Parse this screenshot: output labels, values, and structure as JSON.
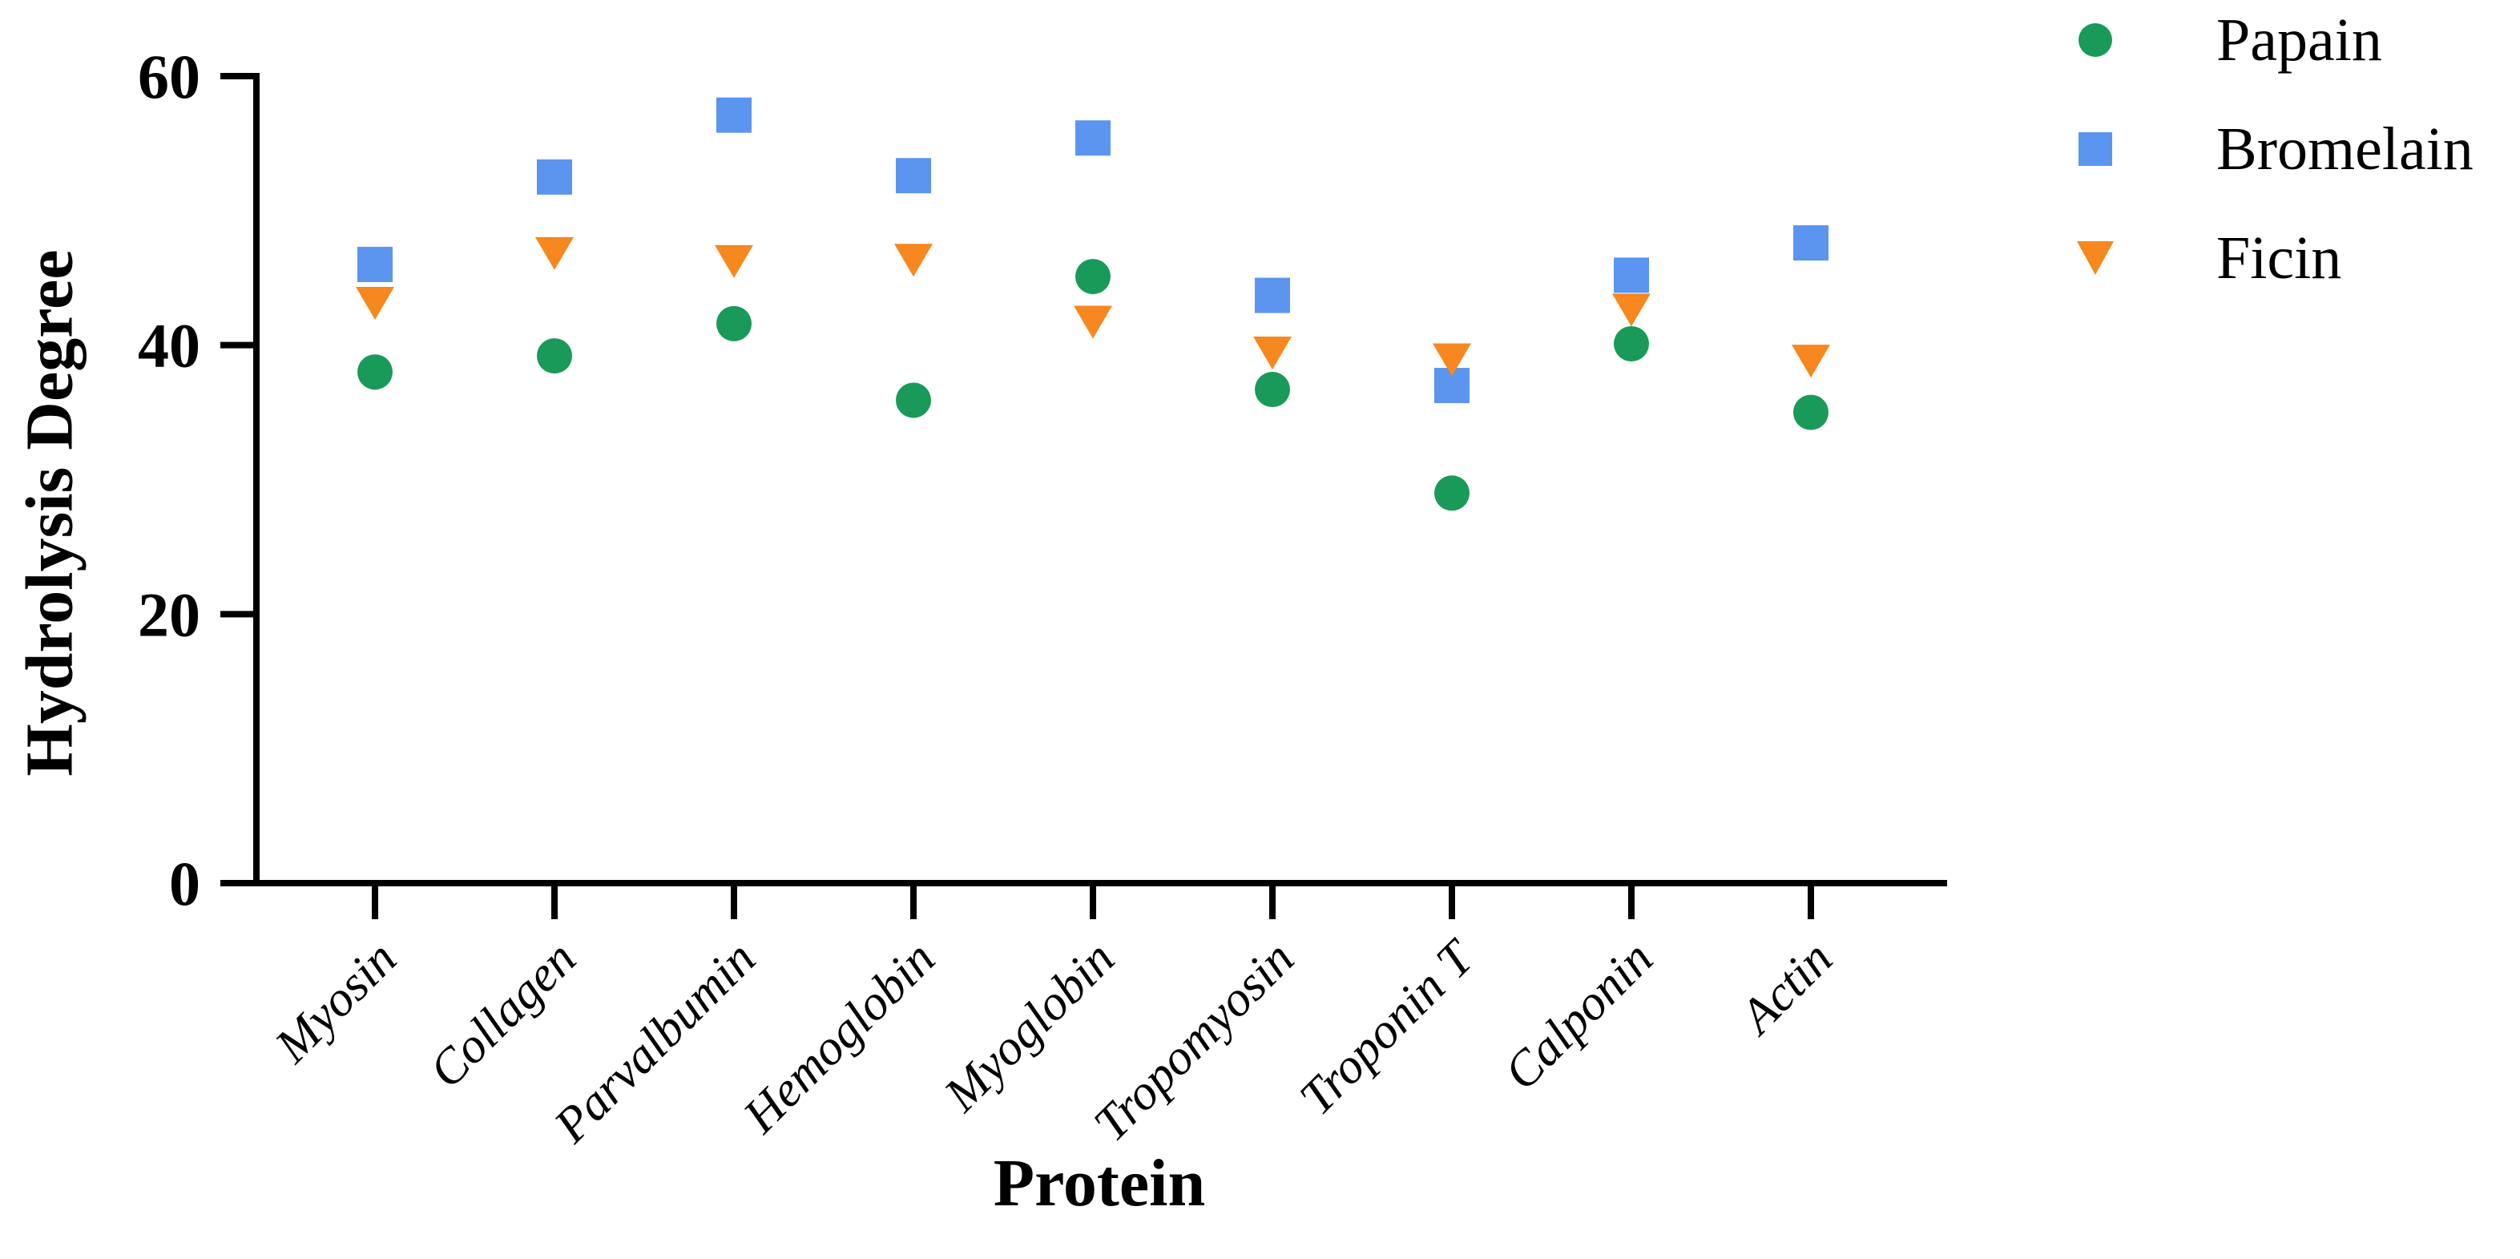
{
  "chart_data": {
    "type": "scatter",
    "title": "",
    "xlabel": "Protein",
    "ylabel": "Hydrolysis Degree",
    "ylim": [
      0,
      60
    ],
    "yticks": [
      0,
      20,
      40,
      60
    ],
    "grid": false,
    "legend_position": "top-right",
    "axis_color": "#000000",
    "categories": [
      "Myosin",
      "Collagen",
      "Parvalbumin",
      "Hemoglobin",
      "Myoglobin",
      "Tropomyosin",
      "Troponin T",
      "Calponin",
      "Actin"
    ],
    "series": [
      {
        "name": "Papain",
        "marker": "circle",
        "color": "#199A58",
        "values": [
          38.0,
          39.2,
          41.6,
          35.9,
          45.1,
          36.7,
          29.0,
          40.1,
          35.0
        ]
      },
      {
        "name": "Bromelain",
        "marker": "square",
        "color": "#5B95EF",
        "values": [
          46.0,
          52.5,
          57.1,
          52.6,
          55.4,
          43.7,
          37.0,
          45.2,
          47.6
        ]
      },
      {
        "name": "Ficin",
        "marker": "triangle-down",
        "color": "#F6881F",
        "values": [
          43.2,
          46.9,
          46.3,
          46.4,
          41.8,
          39.5,
          39.0,
          42.7,
          38.9
        ]
      }
    ]
  }
}
